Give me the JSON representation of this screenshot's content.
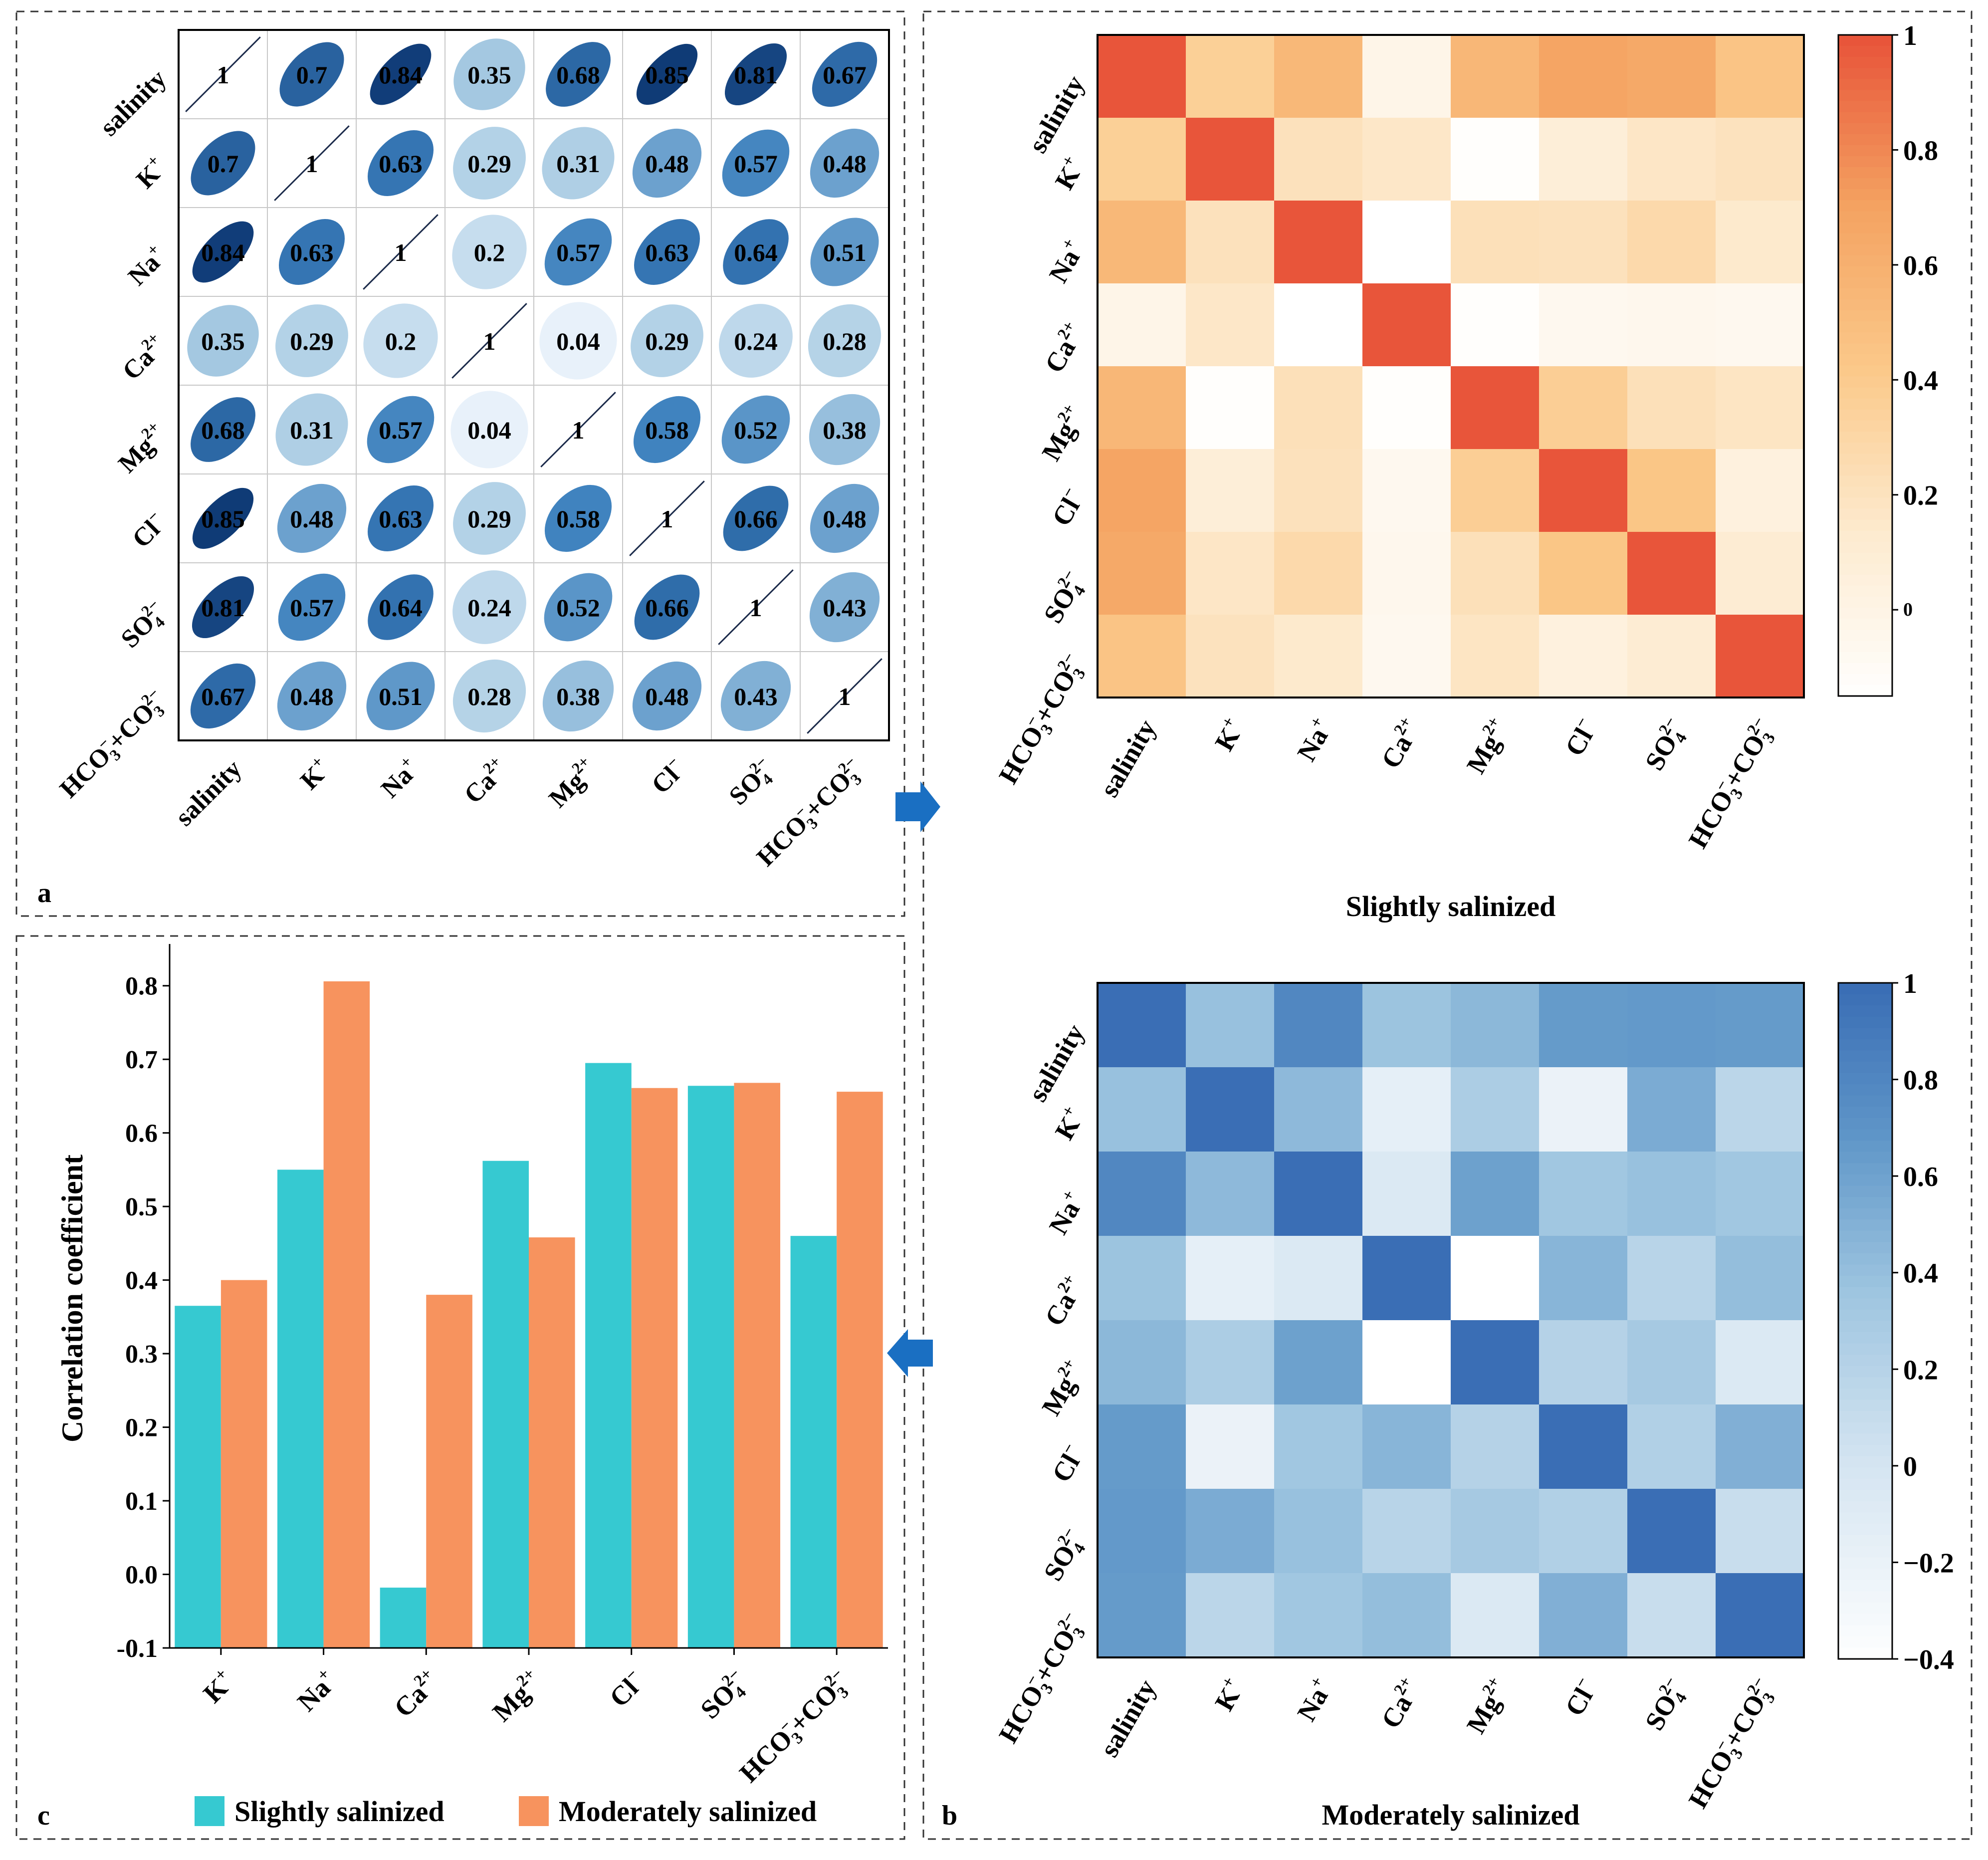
{
  "labels": [
    "salinity",
    "K+",
    "Na+",
    "Ca2+",
    "Mg2+",
    "Cl-",
    "SO42-",
    "HCO3-+CO32-"
  ],
  "panel_labels": {
    "a": "a",
    "b": "b",
    "c": "c"
  },
  "colors": {
    "ellipse_light": "#e8f1fa",
    "ellipse_dark": "#08306b",
    "orange_max": "#e8553a",
    "blue_max": "#3a6eb5",
    "bar_slight": "#36c9d1",
    "bar_moderate": "#f7935e",
    "arrow": "#1a6fc2"
  },
  "chart_data": [
    {
      "type": "correlation-ellipse-matrix",
      "panel": "a",
      "rows": [
        "salinity",
        "K+",
        "Na+",
        "Ca2+",
        "Mg2+",
        "Cl-",
        "SO42-",
        "HCO3-+CO32-"
      ],
      "cols": [
        "salinity",
        "K+",
        "Na+",
        "Ca2+",
        "Mg2+",
        "Cl-",
        "SO42-",
        "HCO3-+CO32-"
      ],
      "values": [
        [
          1,
          0.7,
          0.84,
          0.35,
          0.68,
          0.85,
          0.81,
          0.67
        ],
        [
          0.7,
          1,
          0.63,
          0.29,
          0.31,
          0.48,
          0.57,
          0.48
        ],
        [
          0.84,
          0.63,
          1,
          0.2,
          0.57,
          0.63,
          0.64,
          0.51
        ],
        [
          0.35,
          0.29,
          0.2,
          1,
          0.04,
          0.29,
          0.24,
          0.28
        ],
        [
          0.68,
          0.31,
          0.57,
          0.04,
          1,
          0.58,
          0.52,
          0.38
        ],
        [
          0.85,
          0.48,
          0.63,
          0.29,
          0.58,
          1,
          0.66,
          0.48
        ],
        [
          0.81,
          0.57,
          0.64,
          0.24,
          0.52,
          0.66,
          1,
          0.43
        ],
        [
          0.67,
          0.48,
          0.51,
          0.28,
          0.38,
          0.48,
          0.43,
          1
        ]
      ]
    },
    {
      "type": "heatmap",
      "panel": "b-top",
      "title": "Slightly salinized",
      "rows": [
        "salinity",
        "K+",
        "Na+",
        "Ca2+",
        "Mg2+",
        "Cl-",
        "SO42-",
        "HCO3-+CO32-"
      ],
      "cols": [
        "salinity",
        "K+",
        "Na+",
        "Ca2+",
        "Mg2+",
        "Cl-",
        "SO42-",
        "HCO3-+CO32-"
      ],
      "values": [
        [
          1,
          0.37,
          0.55,
          -0.01,
          0.56,
          0.69,
          0.66,
          0.46
        ],
        [
          0.37,
          1,
          0.22,
          0.17,
          -0.13,
          0.09,
          0.18,
          0.21
        ],
        [
          0.55,
          0.22,
          1,
          -0.15,
          0.23,
          0.22,
          0.29,
          0.15
        ],
        [
          -0.01,
          0.17,
          -0.15,
          1,
          -0.13,
          -0.05,
          -0.04,
          -0.05
        ],
        [
          0.56,
          -0.13,
          0.23,
          -0.13,
          1,
          0.38,
          0.23,
          0.19
        ],
        [
          0.69,
          0.09,
          0.22,
          -0.05,
          0.38,
          1,
          0.45,
          0.05
        ],
        [
          0.66,
          0.18,
          0.29,
          -0.04,
          0.23,
          0.45,
          1,
          0.12
        ],
        [
          0.46,
          0.21,
          0.15,
          -0.05,
          0.19,
          0.05,
          0.12,
          1
        ]
      ],
      "colorbar": {
        "ticks": [
          "1",
          "0.8",
          "0.6",
          "0.4",
          "0.2",
          "0"
        ],
        "tick_values": [
          1,
          0.8,
          0.6,
          0.4,
          0.2,
          0
        ],
        "range": [
          -0.15,
          1
        ]
      }
    },
    {
      "type": "heatmap",
      "panel": "b-bottom",
      "title": "Moderately salinized",
      "rows": [
        "salinity",
        "K+",
        "Na+",
        "Ca2+",
        "Mg2+",
        "Cl-",
        "SO42-",
        "HCO3-+CO32-"
      ],
      "cols": [
        "salinity",
        "K+",
        "Na+",
        "Ca2+",
        "Mg2+",
        "Cl-",
        "SO42-",
        "HCO3-+CO32-"
      ],
      "values": [
        [
          1,
          0.4,
          0.81,
          0.38,
          0.46,
          0.66,
          0.67,
          0.66
        ],
        [
          0.4,
          1,
          0.45,
          -0.15,
          0.28,
          -0.2,
          0.55,
          0.18
        ],
        [
          0.81,
          0.45,
          1,
          -0.05,
          0.62,
          0.35,
          0.4,
          0.35
        ],
        [
          0.38,
          -0.15,
          -0.05,
          1,
          -0.4,
          0.48,
          0.2,
          0.42
        ],
        [
          0.46,
          0.28,
          0.62,
          -0.4,
          1,
          0.22,
          0.32,
          -0.05
        ],
        [
          0.66,
          -0.2,
          0.35,
          0.48,
          0.22,
          1,
          0.25,
          0.52
        ],
        [
          0.67,
          0.55,
          0.4,
          0.2,
          0.32,
          0.25,
          1,
          0.1
        ],
        [
          0.66,
          0.18,
          0.35,
          0.42,
          -0.05,
          0.52,
          0.1,
          1
        ]
      ],
      "colorbar": {
        "ticks": [
          "1",
          "0.8",
          "0.6",
          "0.4",
          "0.2",
          "0",
          "−0.2",
          "−0.4"
        ],
        "tick_values": [
          1,
          0.8,
          0.6,
          0.4,
          0.2,
          0,
          -0.2,
          -0.4
        ],
        "range": [
          -0.4,
          1
        ]
      }
    },
    {
      "type": "bar",
      "panel": "c",
      "categories": [
        "K+",
        "Na+",
        "Ca2+",
        "Mg2+",
        "Cl-",
        "SO42-",
        "HCO3-+CO32-"
      ],
      "series": [
        {
          "name": "Slightly salinized",
          "values": [
            0.365,
            0.55,
            -0.018,
            0.562,
            0.695,
            0.664,
            0.46
          ]
        },
        {
          "name": "Moderately salinized",
          "values": [
            0.4,
            0.806,
            0.38,
            0.458,
            0.661,
            0.668,
            0.656
          ]
        }
      ],
      "ylabel": "Correlation coefficient",
      "ylim": [
        -0.1,
        0.85
      ],
      "yticks": [
        "-0.1",
        "0.0",
        "0.1",
        "0.2",
        "0.3",
        "0.4",
        "0.5",
        "0.6",
        "0.7",
        "0.8"
      ],
      "ytick_values": [
        -0.1,
        0,
        0.1,
        0.2,
        0.3,
        0.4,
        0.5,
        0.6,
        0.7,
        0.8
      ],
      "legend_position": "bottom"
    }
  ]
}
